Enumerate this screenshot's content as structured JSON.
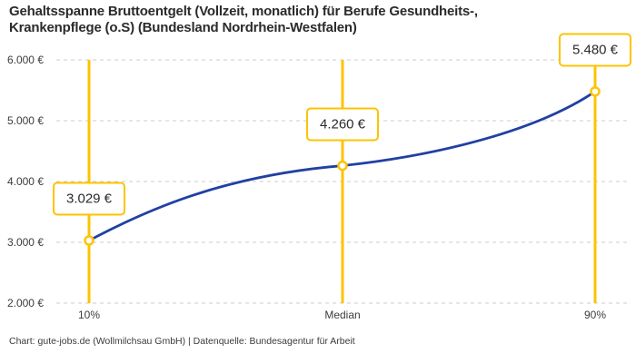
{
  "title": {
    "line1": "Gehaltsspanne Bruttoentgelt (Vollzeit, monatlich) für Berufe Gesundheits-,",
    "line2": "Krankenpflege (o.S) (Bundesland Nordrhein-Westfalen)"
  },
  "footer": "Chart: gute-jobs.de (Wollmilchsau GmbH) | Datenquelle: Bundesagentur für Arbeit",
  "chart_data": {
    "type": "line",
    "title": "Gehaltsspanne Bruttoentgelt (Vollzeit, monatlich) für Berufe Gesundheits-, Krankenpflege (o.S) (Bundesland Nordrhein-Westfalen)",
    "categories": [
      "10%",
      "Median",
      "90%"
    ],
    "values": [
      3029,
      4260,
      5480
    ],
    "value_labels": [
      "3.029 €",
      "4.260 €",
      "5.480 €"
    ],
    "y_axis": {
      "min": 2000,
      "max": 6000,
      "tick_step": 1000,
      "tick_labels": [
        "2.000 €",
        "3.000 €",
        "4.000 €",
        "5.000 €",
        "6.000 €"
      ]
    },
    "xlabel": "",
    "ylabel": "",
    "grid": "horizontal-dashed",
    "legend": "none",
    "colors": {
      "line": "#2140A3",
      "accent": "#FDC300",
      "grid": "#CDCDCD",
      "marker_fill": "#FFFFFF",
      "title_text": "#2B2B2B",
      "axis_text": "#3C3C3C",
      "callout_bg": "#FFFFFF"
    }
  }
}
